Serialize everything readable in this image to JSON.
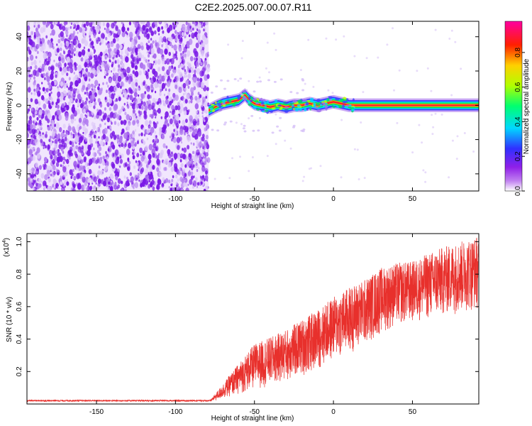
{
  "title": "C2E2.2025.007.00.07.R11",
  "chart_data": [
    {
      "type": "heatmap",
      "xlabel": "Height of straight line (km)",
      "ylabel": "Frequency (Hz)",
      "xlim": [
        -194,
        92
      ],
      "ylim": [
        -50,
        49
      ],
      "xticks": [
        -150,
        -100,
        -50,
        0,
        50
      ],
      "yticks": [
        -40,
        -20,
        0,
        20,
        40
      ],
      "colorbar": {
        "label": "Normalized spectral amplitude",
        "range": [
          0,
          0.98
        ],
        "ticks": [
          "0.0",
          "0.2",
          "0.4",
          "0.6",
          "0.8"
        ],
        "colormap": [
          "#ffffff",
          "#a020f0",
          "#4040ff",
          "#00e0ff",
          "#00ff60",
          "#c0ff00",
          "#ffd000",
          "#ff2000",
          "#ff00a0"
        ]
      },
      "noise_region_x": [
        -194,
        -79
      ],
      "noise_color": "#7a18e6",
      "signal_line": {
        "x": [
          -79,
          -75,
          -70,
          -65,
          -60,
          -56,
          -53,
          -50,
          -45,
          -40,
          -35,
          -30,
          -25,
          -20,
          -15,
          -10,
          -5,
          0,
          5,
          10,
          20,
          40,
          60,
          92
        ],
        "frequency": [
          -3,
          -1,
          1,
          2,
          3,
          6,
          3,
          1,
          0,
          -1,
          0,
          -1,
          0,
          0,
          1,
          0,
          1,
          2,
          1,
          0,
          0,
          0,
          0,
          0
        ]
      }
    },
    {
      "type": "line",
      "xlabel": "Height of straight line (km)",
      "ylabel": "SNR (10 * v/v)",
      "exponent_label": "(x10",
      "exponent_sup": "4",
      "exponent_close": ")",
      "xlim": [
        -194,
        92
      ],
      "ylim": [
        0,
        1.05
      ],
      "xticks": [
        -150,
        -100,
        -50,
        0,
        50
      ],
      "yticks": [
        "0.2",
        "0.4",
        "0.6",
        "0.8",
        "1.0"
      ],
      "series": [
        {
          "color": "#e8302c",
          "trend_x": [
            -194,
            -78,
            -75,
            -60,
            -50,
            -40,
            -30,
            -20,
            -10,
            0,
            10,
            20,
            30,
            40,
            50,
            60,
            70,
            80,
            92
          ],
          "trend_low": [
            0.015,
            0.015,
            0.02,
            0.06,
            0.09,
            0.11,
            0.14,
            0.17,
            0.21,
            0.27,
            0.31,
            0.36,
            0.43,
            0.48,
            0.5,
            0.52,
            0.54,
            0.56,
            0.58
          ],
          "trend_high": [
            0.025,
            0.025,
            0.06,
            0.25,
            0.37,
            0.41,
            0.46,
            0.52,
            0.58,
            0.66,
            0.72,
            0.77,
            0.84,
            0.87,
            0.88,
            0.93,
            0.97,
            1.0,
            1.04
          ]
        }
      ]
    }
  ]
}
